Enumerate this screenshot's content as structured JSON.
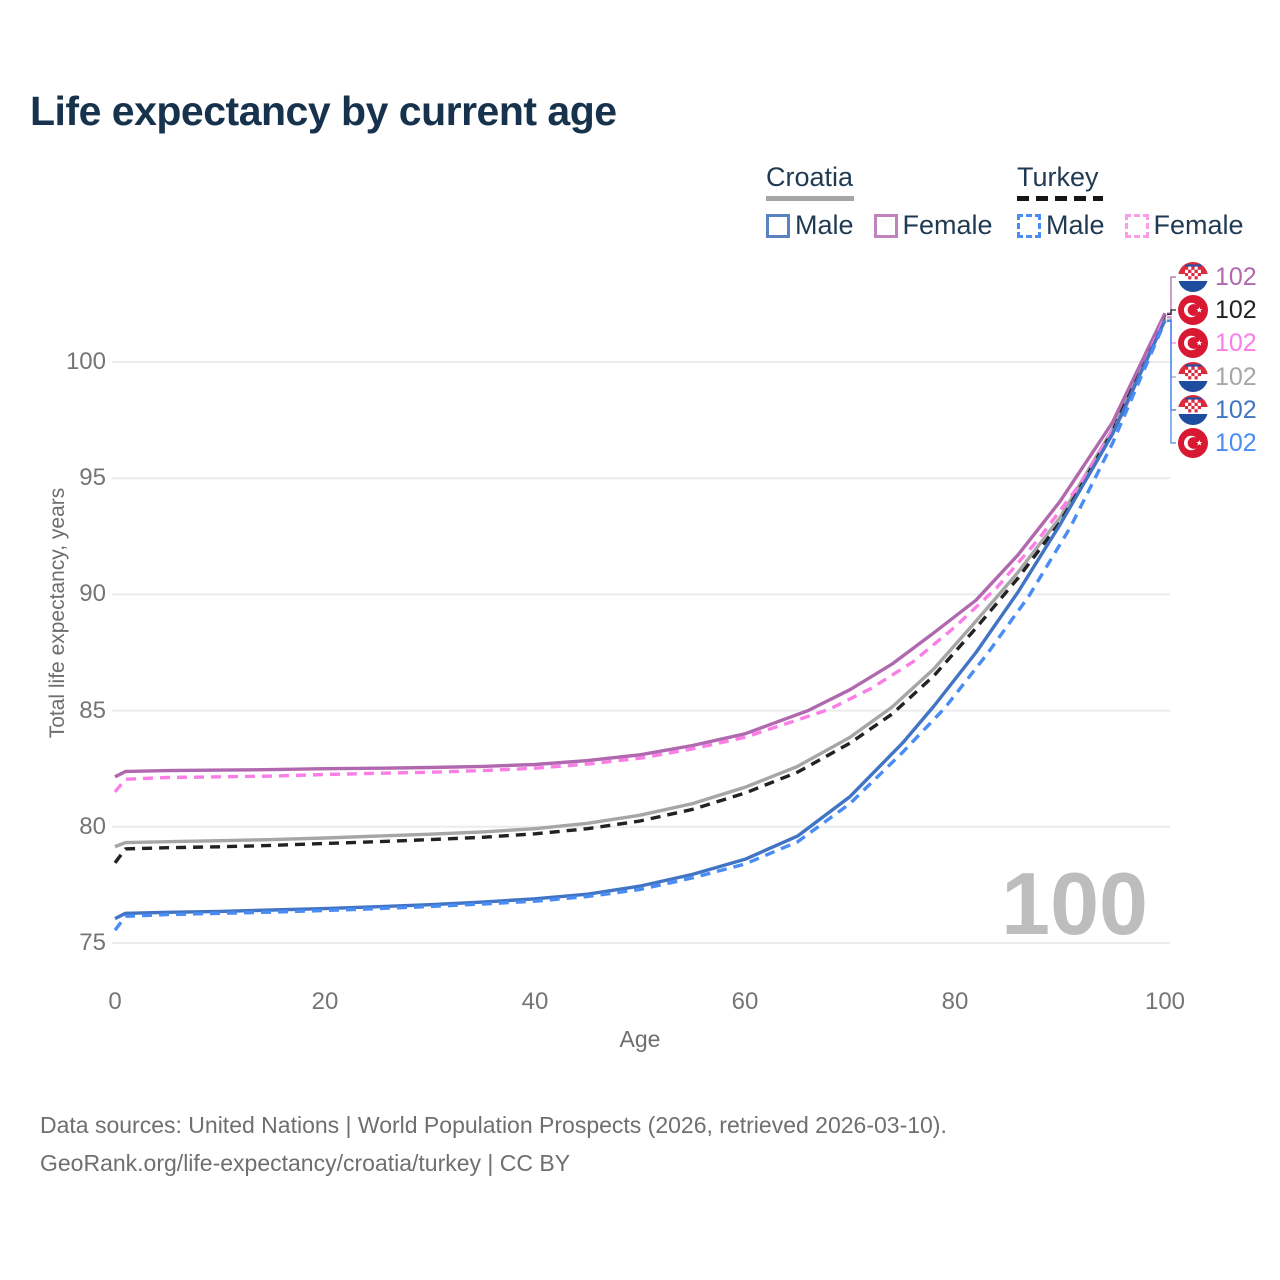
{
  "header": {
    "title": "Life expectancy by current age"
  },
  "legend": {
    "croatia": {
      "title": "Croatia",
      "male": "Male",
      "female": "Female"
    },
    "turkey": {
      "title": "Turkey",
      "male": "Male",
      "female": "Female"
    }
  },
  "colors": {
    "title_text": "#16324d",
    "axis_text": "#757575",
    "gridline": "#ececec",
    "croatia_male": "#4274c4",
    "turkey_male": "#4a8cf5",
    "croatia_female": "#b069ae",
    "turkey_female": "#fb7ee6",
    "croatia_all": "#a6a6a6",
    "turkey_all": "#222222",
    "watermark": "#bdbdbd"
  },
  "footer": {
    "line1": "Data sources: United Nations | World Population Prospects (2026, retrieved 2026-03-10).",
    "line2": "GeoRank.org/life-expectancy/croatia/turkey | CC BY"
  },
  "chart_data": {
    "type": "line",
    "title": "Life expectancy by current age",
    "xlabel": "Age",
    "ylabel": "Total life expectancy, years",
    "xlim": [
      0,
      100
    ],
    "ylim": [
      74,
      103
    ],
    "xticks": [
      "0",
      "20",
      "40",
      "60",
      "80",
      "100"
    ],
    "yticks": [
      "75",
      "80",
      "85",
      "90",
      "95",
      "100"
    ],
    "grid": "horizontal-only",
    "legend_position": "top-right",
    "watermark": "100",
    "series": [
      {
        "name": "croatia-all",
        "country": "Croatia",
        "group": "All",
        "style": "solid",
        "color": "#a6a6a6",
        "points": [
          [
            0,
            79.15
          ],
          [
            1,
            79.32
          ],
          [
            5,
            79.36
          ],
          [
            10,
            79.4
          ],
          [
            15,
            79.45
          ],
          [
            20,
            79.52
          ],
          [
            25,
            79.6
          ],
          [
            30,
            79.68
          ],
          [
            35,
            79.78
          ],
          [
            40,
            79.92
          ],
          [
            45,
            80.15
          ],
          [
            50,
            80.5
          ],
          [
            55,
            81.0
          ],
          [
            60,
            81.7
          ],
          [
            65,
            82.6
          ],
          [
            70,
            83.85
          ],
          [
            74,
            85.15
          ],
          [
            78,
            86.8
          ],
          [
            82,
            88.85
          ],
          [
            86,
            90.95
          ],
          [
            90,
            93.3
          ],
          [
            95,
            97.1
          ],
          [
            100,
            101.9
          ]
        ]
      },
      {
        "name": "turkey-all",
        "country": "Turkey",
        "group": "All",
        "style": "dashed",
        "color": "#222222",
        "points": [
          [
            0,
            78.45
          ],
          [
            1,
            79.05
          ],
          [
            5,
            79.1
          ],
          [
            10,
            79.14
          ],
          [
            15,
            79.2
          ],
          [
            20,
            79.28
          ],
          [
            25,
            79.36
          ],
          [
            30,
            79.45
          ],
          [
            35,
            79.55
          ],
          [
            40,
            79.7
          ],
          [
            45,
            79.92
          ],
          [
            50,
            80.25
          ],
          [
            55,
            80.75
          ],
          [
            60,
            81.45
          ],
          [
            65,
            82.35
          ],
          [
            70,
            83.6
          ],
          [
            74,
            84.85
          ],
          [
            78,
            86.5
          ],
          [
            82,
            88.55
          ],
          [
            86,
            90.7
          ],
          [
            90,
            93.1
          ],
          [
            95,
            97.0
          ],
          [
            100,
            102.05
          ]
        ]
      },
      {
        "name": "croatia-female",
        "country": "Croatia",
        "group": "Female",
        "style": "solid",
        "color": "#b069ae",
        "points": [
          [
            0,
            82.15
          ],
          [
            1,
            82.38
          ],
          [
            5,
            82.42
          ],
          [
            10,
            82.44
          ],
          [
            15,
            82.46
          ],
          [
            20,
            82.5
          ],
          [
            25,
            82.52
          ],
          [
            30,
            82.55
          ],
          [
            35,
            82.6
          ],
          [
            40,
            82.68
          ],
          [
            45,
            82.85
          ],
          [
            50,
            83.1
          ],
          [
            55,
            83.5
          ],
          [
            60,
            84.0
          ],
          [
            63,
            84.5
          ],
          [
            66,
            85.0
          ],
          [
            70,
            85.9
          ],
          [
            74,
            87.0
          ],
          [
            78,
            88.35
          ],
          [
            82,
            89.75
          ],
          [
            86,
            91.7
          ],
          [
            90,
            94.0
          ],
          [
            95,
            97.4
          ],
          [
            100,
            102.1
          ]
        ]
      },
      {
        "name": "turkey-female",
        "country": "Turkey",
        "group": "Female",
        "style": "dashed",
        "color": "#fb7ee6",
        "points": [
          [
            0,
            81.5
          ],
          [
            1,
            82.05
          ],
          [
            5,
            82.12
          ],
          [
            10,
            82.15
          ],
          [
            15,
            82.18
          ],
          [
            20,
            82.25
          ],
          [
            25,
            82.3
          ],
          [
            30,
            82.35
          ],
          [
            35,
            82.42
          ],
          [
            40,
            82.52
          ],
          [
            45,
            82.7
          ],
          [
            50,
            82.95
          ],
          [
            55,
            83.35
          ],
          [
            60,
            83.85
          ],
          [
            64,
            84.45
          ],
          [
            68,
            85.05
          ],
          [
            72,
            85.95
          ],
          [
            76,
            87.1
          ],
          [
            80,
            88.6
          ],
          [
            84,
            90.3
          ],
          [
            88,
            92.4
          ],
          [
            92,
            94.8
          ],
          [
            96,
            97.8
          ],
          [
            100,
            101.95
          ]
        ]
      },
      {
        "name": "croatia-male",
        "country": "Croatia",
        "group": "Male",
        "style": "solid",
        "color": "#4274c4",
        "points": [
          [
            0,
            76.05
          ],
          [
            1,
            76.28
          ],
          [
            5,
            76.32
          ],
          [
            10,
            76.36
          ],
          [
            15,
            76.42
          ],
          [
            20,
            76.48
          ],
          [
            25,
            76.56
          ],
          [
            30,
            76.65
          ],
          [
            35,
            76.76
          ],
          [
            40,
            76.9
          ],
          [
            45,
            77.1
          ],
          [
            50,
            77.45
          ],
          [
            55,
            77.95
          ],
          [
            60,
            78.6
          ],
          [
            65,
            79.6
          ],
          [
            70,
            81.3
          ],
          [
            75,
            83.6
          ],
          [
            78,
            85.2
          ],
          [
            82,
            87.5
          ],
          [
            86,
            90.1
          ],
          [
            90,
            93.0
          ],
          [
            95,
            96.9
          ],
          [
            100,
            101.8
          ]
        ]
      },
      {
        "name": "turkey-male",
        "country": "Turkey",
        "group": "Male",
        "style": "dashed",
        "color": "#4a8cf5",
        "points": [
          [
            0,
            75.55
          ],
          [
            1,
            76.15
          ],
          [
            5,
            76.22
          ],
          [
            10,
            76.28
          ],
          [
            15,
            76.33
          ],
          [
            20,
            76.4
          ],
          [
            25,
            76.48
          ],
          [
            30,
            76.57
          ],
          [
            35,
            76.68
          ],
          [
            40,
            76.8
          ],
          [
            45,
            77.0
          ],
          [
            50,
            77.3
          ],
          [
            55,
            77.8
          ],
          [
            60,
            78.4
          ],
          [
            65,
            79.35
          ],
          [
            70,
            81.0
          ],
          [
            75,
            83.2
          ],
          [
            79,
            85.1
          ],
          [
            83,
            87.4
          ],
          [
            87,
            89.9
          ],
          [
            91,
            92.9
          ],
          [
            95,
            96.5
          ],
          [
            100,
            101.75
          ]
        ]
      }
    ],
    "end_labels": [
      {
        "series": "croatia-female",
        "flag": "croatia",
        "value": "102",
        "color": "#b069ae"
      },
      {
        "series": "turkey-all",
        "flag": "turkey",
        "value": "102",
        "color": "#222222"
      },
      {
        "series": "turkey-female",
        "flag": "turkey",
        "value": "102",
        "color": "#fb7ee6"
      },
      {
        "series": "croatia-all",
        "flag": "croatia",
        "value": "102",
        "color": "#a6a6a6"
      },
      {
        "series": "croatia-male",
        "flag": "croatia",
        "value": "102",
        "color": "#4274c4"
      },
      {
        "series": "turkey-male",
        "flag": "turkey",
        "value": "102",
        "color": "#4a8cf5"
      }
    ]
  }
}
